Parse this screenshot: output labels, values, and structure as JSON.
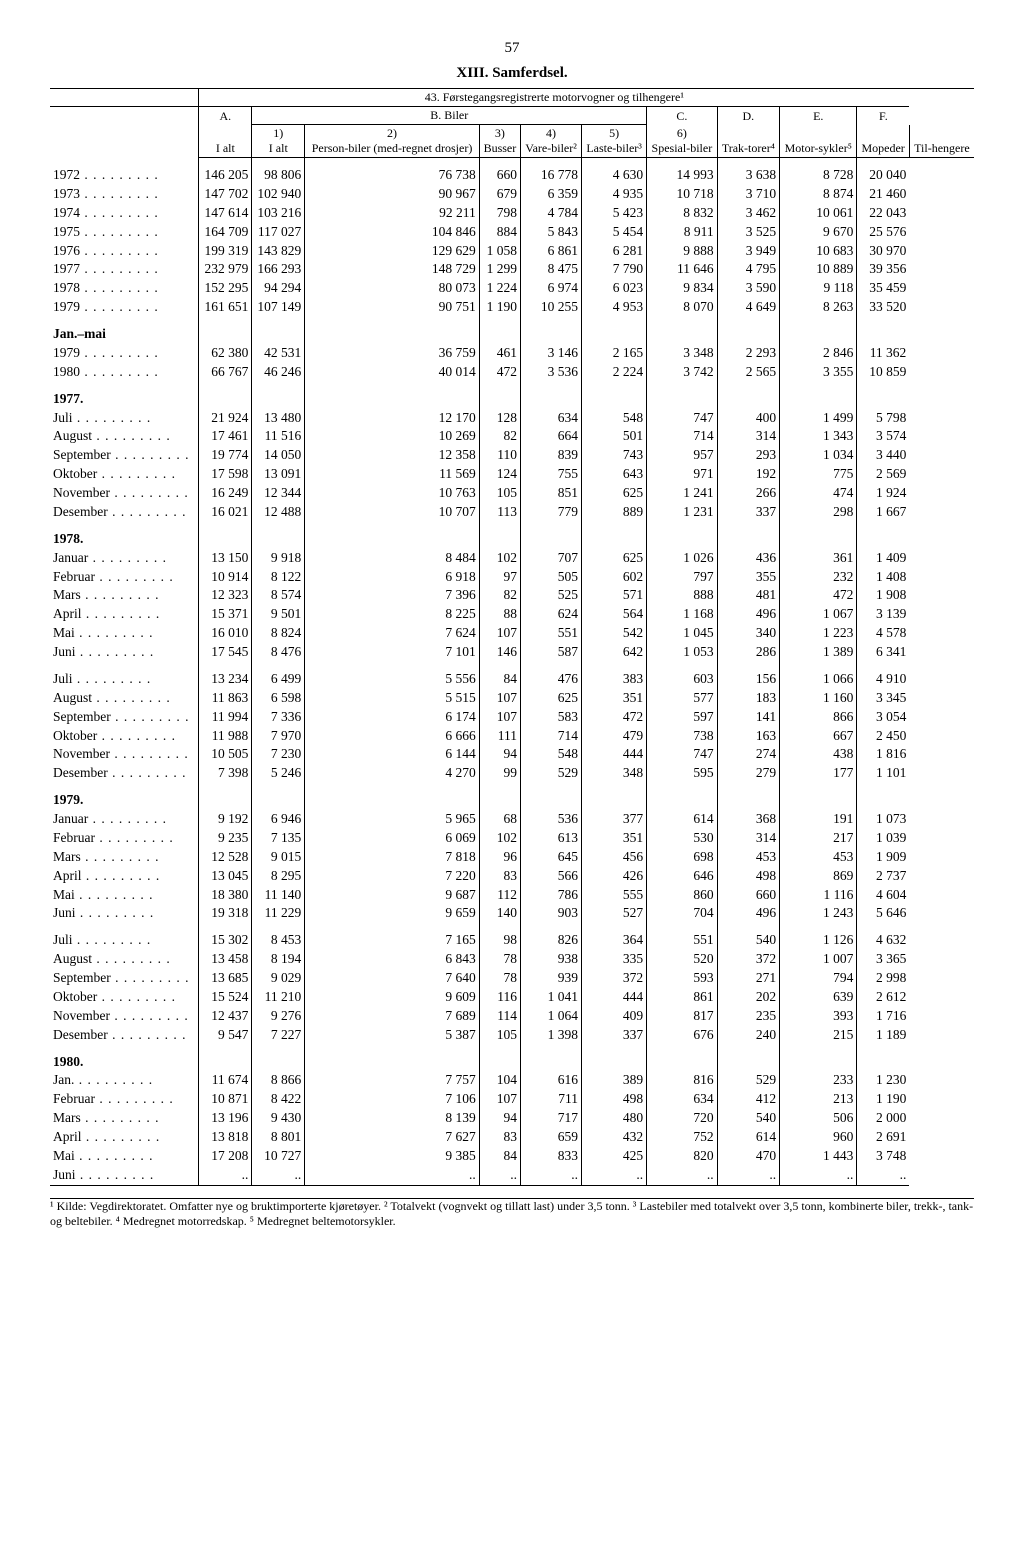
{
  "page_number": "57",
  "chapter_title": "XIII. Samferdsel.",
  "table_title": "43. Førstegangsregistrerte motorvogner og tilhengere¹",
  "header": {
    "A": "A.",
    "B": "B. Biler",
    "C": "C.",
    "D": "D.",
    "E": "E.",
    "F": "F.",
    "A_sub": "I alt",
    "B1": "1)",
    "B1_sub": "I alt",
    "B2": "2)",
    "B2_sub": "Person-biler (med-regnet drosjer)",
    "B3": "3)",
    "B3_sub": "Busser",
    "B4": "4)",
    "B4_sub": "Vare-biler²",
    "B5": "5)",
    "B5_sub": "Laste-biler³",
    "B6": "6)",
    "B6_sub": "Spesial-biler",
    "C_sub": "Trak-torer⁴",
    "D_sub": "Motor-sykler⁵",
    "E_sub": "Mopeder",
    "F_sub": "Til-hengere"
  },
  "years": [
    {
      "label": "1972",
      "v": [
        "146 205",
        "98 806",
        "76 738",
        "660",
        "16 778",
        "4 630",
        "14 993",
        "3 638",
        "8 728",
        "20 040"
      ]
    },
    {
      "label": "1973",
      "v": [
        "147 702",
        "102 940",
        "90 967",
        "679",
        "6 359",
        "4 935",
        "10 718",
        "3 710",
        "8 874",
        "21 460"
      ]
    },
    {
      "label": "1974",
      "v": [
        "147 614",
        "103 216",
        "92 211",
        "798",
        "4 784",
        "5 423",
        "8 832",
        "3 462",
        "10 061",
        "22 043"
      ]
    },
    {
      "label": "1975",
      "v": [
        "164 709",
        "117 027",
        "104 846",
        "884",
        "5 843",
        "5 454",
        "8 911",
        "3 525",
        "9 670",
        "25 576"
      ]
    },
    {
      "label": "1976",
      "v": [
        "199 319",
        "143 829",
        "129 629",
        "1 058",
        "6 861",
        "6 281",
        "9 888",
        "3 949",
        "10 683",
        "30 970"
      ]
    },
    {
      "label": "1977",
      "v": [
        "232 979",
        "166 293",
        "148 729",
        "1 299",
        "8 475",
        "7 790",
        "11 646",
        "4 795",
        "10 889",
        "39 356"
      ]
    },
    {
      "label": "1978",
      "v": [
        "152 295",
        "94 294",
        "80 073",
        "1 224",
        "6 974",
        "6 023",
        "9 834",
        "3 590",
        "9 118",
        "35 459"
      ]
    },
    {
      "label": "1979",
      "v": [
        "161 651",
        "107 149",
        "90 751",
        "1 190",
        "10 255",
        "4 953",
        "8 070",
        "4 649",
        "8 263",
        "33 520"
      ]
    }
  ],
  "janmai_label": "Jan.–mai",
  "janmai": [
    {
      "label": "1979",
      "v": [
        "62 380",
        "42 531",
        "36 759",
        "461",
        "3 146",
        "2 165",
        "3 348",
        "2 293",
        "2 846",
        "11 362"
      ]
    },
    {
      "label": "1980",
      "v": [
        "66 767",
        "46 246",
        "40 014",
        "472",
        "3 536",
        "2 224",
        "3 742",
        "2 565",
        "3 355",
        "10 859"
      ]
    }
  ],
  "y1977_label": "1977.",
  "y1977": [
    {
      "label": "Juli",
      "v": [
        "21 924",
        "13 480",
        "12 170",
        "128",
        "634",
        "548",
        "747",
        "400",
        "1 499",
        "5 798"
      ]
    },
    {
      "label": "August",
      "v": [
        "17 461",
        "11 516",
        "10 269",
        "82",
        "664",
        "501",
        "714",
        "314",
        "1 343",
        "3 574"
      ]
    },
    {
      "label": "September",
      "v": [
        "19 774",
        "14 050",
        "12 358",
        "110",
        "839",
        "743",
        "957",
        "293",
        "1 034",
        "3 440"
      ]
    },
    {
      "label": "Oktober",
      "v": [
        "17 598",
        "13 091",
        "11 569",
        "124",
        "755",
        "643",
        "971",
        "192",
        "775",
        "2 569"
      ]
    },
    {
      "label": "November",
      "v": [
        "16 249",
        "12 344",
        "10 763",
        "105",
        "851",
        "625",
        "1 241",
        "266",
        "474",
        "1 924"
      ]
    },
    {
      "label": "Desember",
      "v": [
        "16 021",
        "12 488",
        "10 707",
        "113",
        "779",
        "889",
        "1 231",
        "337",
        "298",
        "1 667"
      ]
    }
  ],
  "y1978_label": "1978.",
  "y1978a": [
    {
      "label": "Januar",
      "v": [
        "13 150",
        "9 918",
        "8 484",
        "102",
        "707",
        "625",
        "1 026",
        "436",
        "361",
        "1 409"
      ]
    },
    {
      "label": "Februar",
      "v": [
        "10 914",
        "8 122",
        "6 918",
        "97",
        "505",
        "602",
        "797",
        "355",
        "232",
        "1 408"
      ]
    },
    {
      "label": "Mars",
      "v": [
        "12 323",
        "8 574",
        "7 396",
        "82",
        "525",
        "571",
        "888",
        "481",
        "472",
        "1 908"
      ]
    },
    {
      "label": "April",
      "v": [
        "15 371",
        "9 501",
        "8 225",
        "88",
        "624",
        "564",
        "1 168",
        "496",
        "1 067",
        "3 139"
      ]
    },
    {
      "label": "Mai",
      "v": [
        "16 010",
        "8 824",
        "7 624",
        "107",
        "551",
        "542",
        "1 045",
        "340",
        "1 223",
        "4 578"
      ]
    },
    {
      "label": "Juni",
      "v": [
        "17 545",
        "8 476",
        "7 101",
        "146",
        "587",
        "642",
        "1 053",
        "286",
        "1 389",
        "6 341"
      ]
    }
  ],
  "y1978b": [
    {
      "label": "Juli",
      "v": [
        "13 234",
        "6 499",
        "5 556",
        "84",
        "476",
        "383",
        "603",
        "156",
        "1 066",
        "4 910"
      ]
    },
    {
      "label": "August",
      "v": [
        "11 863",
        "6 598",
        "5 515",
        "107",
        "625",
        "351",
        "577",
        "183",
        "1 160",
        "3 345"
      ]
    },
    {
      "label": "September",
      "v": [
        "11 994",
        "7 336",
        "6 174",
        "107",
        "583",
        "472",
        "597",
        "141",
        "866",
        "3 054"
      ]
    },
    {
      "label": "Oktober",
      "v": [
        "11 988",
        "7 970",
        "6 666",
        "111",
        "714",
        "479",
        "738",
        "163",
        "667",
        "2 450"
      ]
    },
    {
      "label": "November",
      "v": [
        "10 505",
        "7 230",
        "6 144",
        "94",
        "548",
        "444",
        "747",
        "274",
        "438",
        "1 816"
      ]
    },
    {
      "label": "Desember",
      "v": [
        "7 398",
        "5 246",
        "4 270",
        "99",
        "529",
        "348",
        "595",
        "279",
        "177",
        "1 101"
      ]
    }
  ],
  "y1979_label": "1979.",
  "y1979a": [
    {
      "label": "Januar",
      "v": [
        "9 192",
        "6 946",
        "5 965",
        "68",
        "536",
        "377",
        "614",
        "368",
        "191",
        "1 073"
      ]
    },
    {
      "label": "Februar",
      "v": [
        "9 235",
        "7 135",
        "6 069",
        "102",
        "613",
        "351",
        "530",
        "314",
        "217",
        "1 039"
      ]
    },
    {
      "label": "Mars",
      "v": [
        "12 528",
        "9 015",
        "7 818",
        "96",
        "645",
        "456",
        "698",
        "453",
        "453",
        "1 909"
      ]
    },
    {
      "label": "April",
      "v": [
        "13 045",
        "8 295",
        "7 220",
        "83",
        "566",
        "426",
        "646",
        "498",
        "869",
        "2 737"
      ]
    },
    {
      "label": "Mai",
      "v": [
        "18 380",
        "11 140",
        "9 687",
        "112",
        "786",
        "555",
        "860",
        "660",
        "1 116",
        "4 604"
      ]
    },
    {
      "label": "Juni",
      "v": [
        "19 318",
        "11 229",
        "9 659",
        "140",
        "903",
        "527",
        "704",
        "496",
        "1 243",
        "5 646"
      ]
    }
  ],
  "y1979b": [
    {
      "label": "Juli",
      "v": [
        "15 302",
        "8 453",
        "7 165",
        "98",
        "826",
        "364",
        "551",
        "540",
        "1 126",
        "4 632"
      ]
    },
    {
      "label": "August",
      "v": [
        "13 458",
        "8 194",
        "6 843",
        "78",
        "938",
        "335",
        "520",
        "372",
        "1 007",
        "3 365"
      ]
    },
    {
      "label": "September",
      "v": [
        "13 685",
        "9 029",
        "7 640",
        "78",
        "939",
        "372",
        "593",
        "271",
        "794",
        "2 998"
      ]
    },
    {
      "label": "Oktober",
      "v": [
        "15 524",
        "11 210",
        "9 609",
        "116",
        "1 041",
        "444",
        "861",
        "202",
        "639",
        "2 612"
      ]
    },
    {
      "label": "November",
      "v": [
        "12 437",
        "9 276",
        "7 689",
        "114",
        "1 064",
        "409",
        "817",
        "235",
        "393",
        "1 716"
      ]
    },
    {
      "label": "Desember",
      "v": [
        "9 547",
        "7 227",
        "5 387",
        "105",
        "1 398",
        "337",
        "676",
        "240",
        "215",
        "1 189"
      ]
    }
  ],
  "y1980_label": "1980.",
  "y1980": [
    {
      "label": "Jan.",
      "v": [
        "11 674",
        "8 866",
        "7 757",
        "104",
        "616",
        "389",
        "816",
        "529",
        "233",
        "1 230"
      ]
    },
    {
      "label": "Februar",
      "v": [
        "10 871",
        "8 422",
        "7 106",
        "107",
        "711",
        "498",
        "634",
        "412",
        "213",
        "1 190"
      ]
    },
    {
      "label": "Mars",
      "v": [
        "13 196",
        "9 430",
        "8 139",
        "94",
        "717",
        "480",
        "720",
        "540",
        "506",
        "2 000"
      ]
    },
    {
      "label": "April",
      "v": [
        "13 818",
        "8 801",
        "7 627",
        "83",
        "659",
        "432",
        "752",
        "614",
        "960",
        "2 691"
      ]
    },
    {
      "label": "Mai",
      "v": [
        "17 208",
        "10 727",
        "9 385",
        "84",
        "833",
        "425",
        "820",
        "470",
        "1 443",
        "3 748"
      ]
    },
    {
      "label": "Juni",
      "v": [
        "..",
        "..",
        "..",
        "..",
        "..",
        "..",
        "..",
        "..",
        "..",
        ".."
      ]
    }
  ],
  "footnotes": "¹ Kilde: Vegdirektoratet. Omfatter nye og bruktimporterte kjøretøyer.  ² Totalvekt (vognvekt og tillatt last) under 3,5 tonn.  ³ Lastebiler med totalvekt over 3,5 tonn, kombinerte biler, trekk-, tank- og beltebiler.  ⁴ Medregnet motorredskap.  ⁵ Medregnet beltemotorsykler."
}
